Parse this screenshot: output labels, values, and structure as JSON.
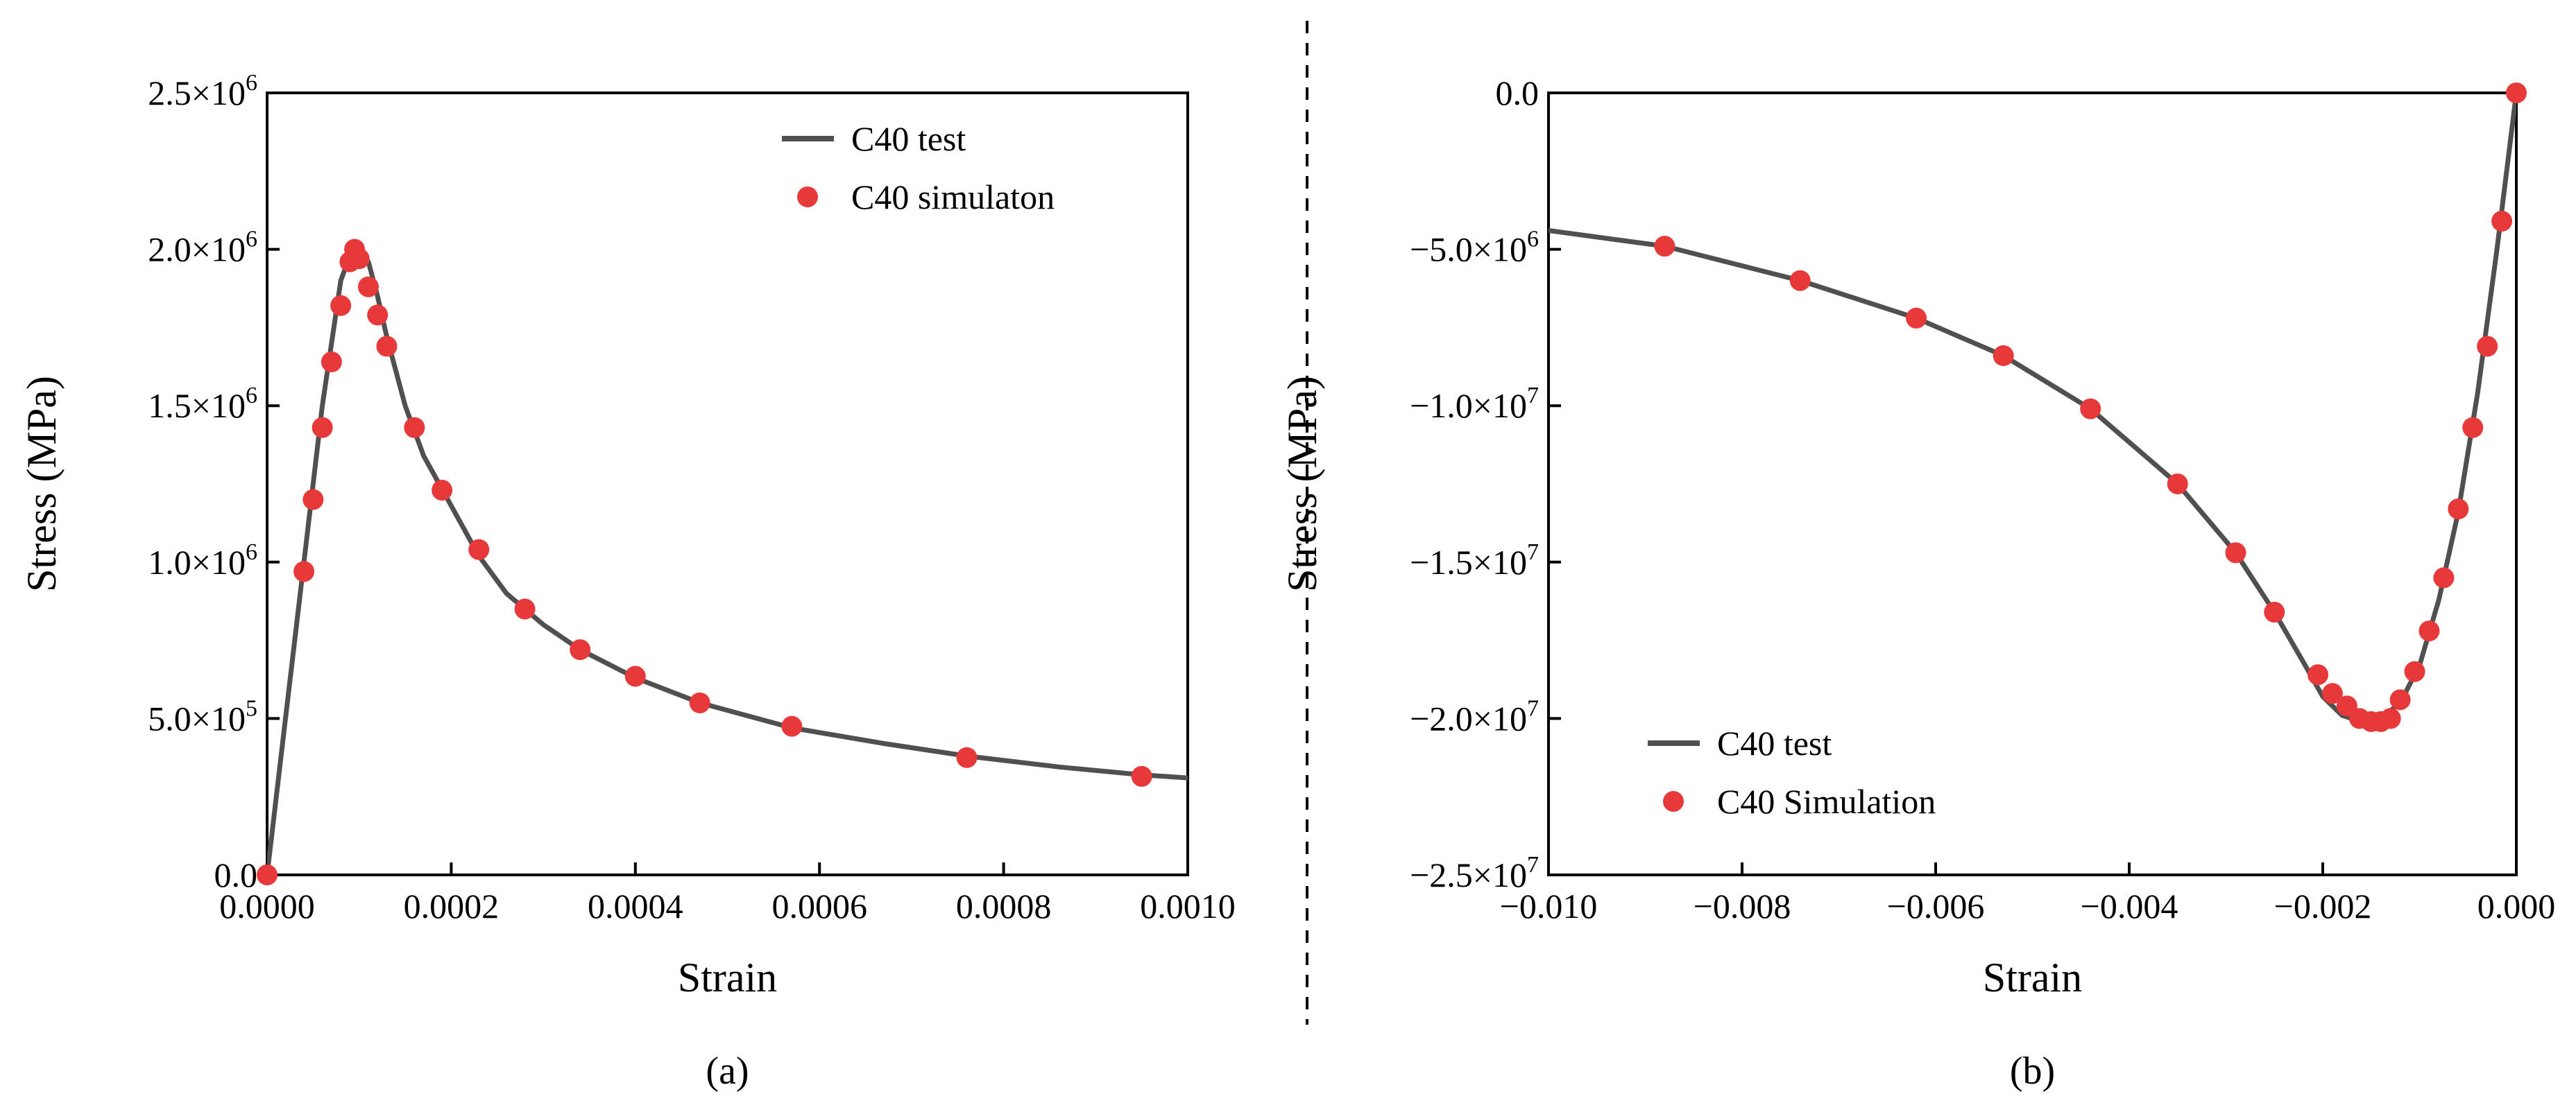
{
  "colors": {
    "line": "#505050",
    "marker": "#e8393a",
    "axis": "#000000",
    "divider": "#000000"
  },
  "chart_data": [
    {
      "type": "line",
      "panel_label": "(a)",
      "xlabel": "Strain",
      "ylabel": "Stress (MPa)",
      "xlim": [
        0,
        0.001
      ],
      "ylim": [
        0,
        2500000
      ],
      "x_ticks": [
        0,
        0.0002,
        0.0004,
        0.0006,
        0.0008,
        0.001
      ],
      "x_tick_labels": [
        "0.0000",
        "0.0002",
        "0.0004",
        "0.0006",
        "0.0008",
        "0.0010"
      ],
      "y_ticks": [
        0,
        500000,
        1000000,
        1500000,
        2000000,
        2500000
      ],
      "y_tick_labels": [
        {
          "mant": "0.0",
          "exp": ""
        },
        {
          "mant": "5.0×10",
          "exp": "5"
        },
        {
          "mant": "1.0×10",
          "exp": "6"
        },
        {
          "mant": "1.5×10",
          "exp": "6"
        },
        {
          "mant": "2.0×10",
          "exp": "6"
        },
        {
          "mant": "2.5×10",
          "exp": "6"
        }
      ],
      "legend_position": "top-right",
      "series": [
        {
          "name": "C40 test",
          "style": "line",
          "x": [
            0,
            2e-05,
            4e-05,
            6e-05,
            8e-05,
            9e-05,
            0.0001,
            0.00011,
            0.00012,
            0.00013,
            0.00015,
            0.00017,
            0.0002,
            0.00023,
            0.00026,
            0.0003,
            0.00034,
            0.0004,
            0.00047,
            0.00057,
            0.00067,
            0.00076,
            0.00086,
            0.00095,
            0.001
          ],
          "values": [
            0,
            500000,
            1000000,
            1500000,
            1900000,
            1980000,
            2000000,
            1960000,
            1850000,
            1720000,
            1500000,
            1340000,
            1180000,
            1020000,
            900000,
            800000,
            720000,
            630000,
            550000,
            470000,
            420000,
            380000,
            345000,
            320000,
            310000
          ]
        },
        {
          "name": "C40 simulaton",
          "style": "markers",
          "x": [
            0,
            4e-05,
            5e-05,
            6e-05,
            7e-05,
            8e-05,
            9e-05,
            9.5e-05,
            0.0001,
            0.00011,
            0.00012,
            0.00013,
            0.00016,
            0.00019,
            0.00023,
            0.00028,
            0.00034,
            0.0004,
            0.00047,
            0.00057,
            0.00076,
            0.00095
          ],
          "values": [
            0,
            970000,
            1200000,
            1430000,
            1640000,
            1820000,
            1960000,
            2000000,
            1970000,
            1880000,
            1790000,
            1690000,
            1430000,
            1230000,
            1040000,
            850000,
            720000,
            635000,
            550000,
            475000,
            375000,
            315000
          ]
        }
      ]
    },
    {
      "type": "line",
      "panel_label": "(b)",
      "xlabel": "Strain",
      "ylabel": "Stress (MPa)",
      "xlim": [
        -0.01,
        0
      ],
      "ylim": [
        -25000000,
        0
      ],
      "x_ticks": [
        -0.01,
        -0.008,
        -0.006,
        -0.004,
        -0.002,
        0
      ],
      "x_tick_labels": [
        "−0.010",
        "−0.008",
        "−0.006",
        "−0.004",
        "−0.002",
        "0.000"
      ],
      "y_ticks": [
        0,
        -5000000,
        -10000000,
        -15000000,
        -20000000,
        -25000000
      ],
      "y_tick_labels": [
        {
          "mant": "0.0",
          "exp": ""
        },
        {
          "mant": "−5.0×10",
          "exp": "6"
        },
        {
          "mant": "−1.0×10",
          "exp": "7"
        },
        {
          "mant": "−1.5×10",
          "exp": "7"
        },
        {
          "mant": "−2.0×10",
          "exp": "7"
        },
        {
          "mant": "−2.5×10",
          "exp": "7"
        }
      ],
      "legend_position": "bottom-left",
      "series": [
        {
          "name": "C40 test",
          "style": "line",
          "x": [
            -0.01,
            -0.0088,
            -0.0074,
            -0.0062,
            -0.0053,
            -0.0044,
            -0.0035,
            -0.0029,
            -0.0025,
            -0.0022,
            -0.002,
            -0.0018,
            -0.0016,
            -0.0015,
            -0.0014,
            -0.0012,
            -0.001,
            -0.0008,
            -0.0006,
            -0.0004,
            -0.0002,
            0
          ],
          "values": [
            -4400000,
            -4900000,
            -6000000,
            -7200000,
            -8400000,
            -10100000,
            -12500000,
            -14700000,
            -16600000,
            -18200000,
            -19300000,
            -19900000,
            -20100000,
            -20100000,
            -20000000,
            -19500000,
            -18300000,
            -16200000,
            -13400000,
            -9600000,
            -5000000,
            0
          ]
        },
        {
          "name": "C40 Simulation",
          "style": "markers",
          "x": [
            -0.0088,
            -0.0074,
            -0.0062,
            -0.0053,
            -0.0044,
            -0.0035,
            -0.0029,
            -0.0025,
            -0.00205,
            -0.0019,
            -0.00175,
            -0.00162,
            -0.0015,
            -0.0014,
            -0.0013,
            -0.0012,
            -0.00105,
            -0.0009,
            -0.00075,
            -0.0006,
            -0.00045,
            -0.0003,
            -0.00015,
            0
          ],
          "values": [
            -4900000,
            -6000000,
            -7200000,
            -8400000,
            -10100000,
            -12500000,
            -14700000,
            -16600000,
            -18600000,
            -19200000,
            -19600000,
            -20000000,
            -20100000,
            -20100000,
            -20000000,
            -19400000,
            -18500000,
            -17200000,
            -15500000,
            -13300000,
            -10700000,
            -8100000,
            -4100000,
            0
          ]
        }
      ]
    }
  ]
}
